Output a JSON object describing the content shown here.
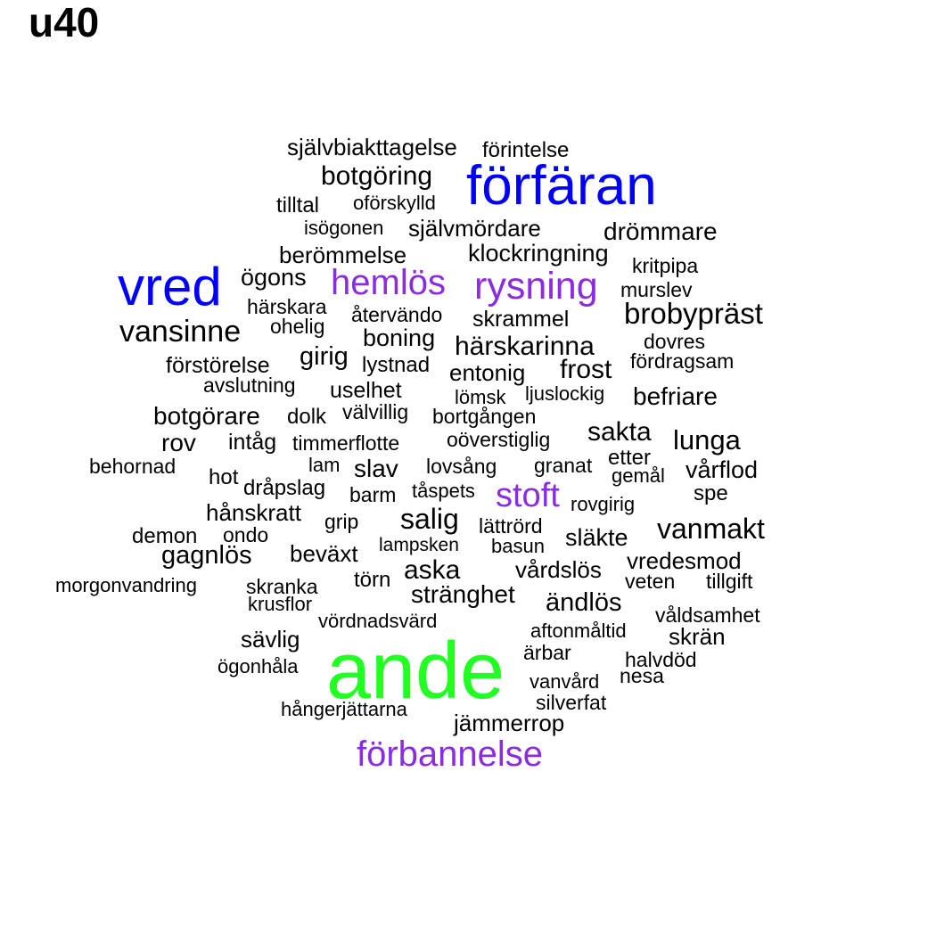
{
  "title": "u40",
  "colors": {
    "default": "#000000",
    "blue": "#0000ff",
    "purple": "#8b2be2",
    "green": "#22ff22"
  },
  "words": [
    {
      "text": "självbiakttagelse",
      "tier": "default"
    },
    {
      "text": "förintelse",
      "tier": "default"
    },
    {
      "text": "botgöring",
      "tier": "default"
    },
    {
      "text": "förfäran",
      "tier": "blue"
    },
    {
      "text": "tilltal",
      "tier": "default"
    },
    {
      "text": "oförskylld",
      "tier": "default"
    },
    {
      "text": "isögonen",
      "tier": "default"
    },
    {
      "text": "självmördare",
      "tier": "default"
    },
    {
      "text": "drömmare",
      "tier": "default"
    },
    {
      "text": "berömmelse",
      "tier": "default"
    },
    {
      "text": "klockringning",
      "tier": "default"
    },
    {
      "text": "kritpipa",
      "tier": "default"
    },
    {
      "text": "vred",
      "tier": "blue"
    },
    {
      "text": "ögons",
      "tier": "default"
    },
    {
      "text": "hemlös",
      "tier": "purple"
    },
    {
      "text": "rysning",
      "tier": "purple"
    },
    {
      "text": "murslev",
      "tier": "default"
    },
    {
      "text": "härskara",
      "tier": "default"
    },
    {
      "text": "återvändo",
      "tier": "default"
    },
    {
      "text": "skrammel",
      "tier": "default"
    },
    {
      "text": "brobypräst",
      "tier": "default"
    },
    {
      "text": "vansinne",
      "tier": "default"
    },
    {
      "text": "ohelig",
      "tier": "default"
    },
    {
      "text": "boning",
      "tier": "default"
    },
    {
      "text": "härskarinna",
      "tier": "default"
    },
    {
      "text": "dovres",
      "tier": "default"
    },
    {
      "text": "förstörelse",
      "tier": "default"
    },
    {
      "text": "girig",
      "tier": "default"
    },
    {
      "text": "lystnad",
      "tier": "default"
    },
    {
      "text": "entonig",
      "tier": "default"
    },
    {
      "text": "frost",
      "tier": "default"
    },
    {
      "text": "fördragsam",
      "tier": "default"
    },
    {
      "text": "avslutning",
      "tier": "default"
    },
    {
      "text": "uselhet",
      "tier": "default"
    },
    {
      "text": "lömsk",
      "tier": "default"
    },
    {
      "text": "ljuslockig",
      "tier": "default"
    },
    {
      "text": "befriare",
      "tier": "default"
    },
    {
      "text": "botgörare",
      "tier": "default"
    },
    {
      "text": "dolk",
      "tier": "default"
    },
    {
      "text": "välvillig",
      "tier": "default"
    },
    {
      "text": "bortgången",
      "tier": "default"
    },
    {
      "text": "sakta",
      "tier": "default"
    },
    {
      "text": "rov",
      "tier": "default"
    },
    {
      "text": "intåg",
      "tier": "default"
    },
    {
      "text": "timmerflotte",
      "tier": "default"
    },
    {
      "text": "oöverstiglig",
      "tier": "default"
    },
    {
      "text": "lunga",
      "tier": "default"
    },
    {
      "text": "behornad",
      "tier": "default"
    },
    {
      "text": "lam",
      "tier": "default"
    },
    {
      "text": "slav",
      "tier": "default"
    },
    {
      "text": "lovsång",
      "tier": "default"
    },
    {
      "text": "granat",
      "tier": "default"
    },
    {
      "text": "etter",
      "tier": "default"
    },
    {
      "text": "vårflod",
      "tier": "default"
    },
    {
      "text": "hot",
      "tier": "default"
    },
    {
      "text": "gemål",
      "tier": "default"
    },
    {
      "text": "dråpslag",
      "tier": "default"
    },
    {
      "text": "tåspets",
      "tier": "default"
    },
    {
      "text": "stoft",
      "tier": "purple"
    },
    {
      "text": "spe",
      "tier": "default"
    },
    {
      "text": "barm",
      "tier": "default"
    },
    {
      "text": "hånskratt",
      "tier": "default"
    },
    {
      "text": "salig",
      "tier": "default"
    },
    {
      "text": "rovgirig",
      "tier": "default"
    },
    {
      "text": "grip",
      "tier": "default"
    },
    {
      "text": "lättrörd",
      "tier": "default"
    },
    {
      "text": "vanmakt",
      "tier": "default"
    },
    {
      "text": "demon",
      "tier": "default"
    },
    {
      "text": "ondo",
      "tier": "default"
    },
    {
      "text": "släkte",
      "tier": "default"
    },
    {
      "text": "lampsken",
      "tier": "default"
    },
    {
      "text": "basun",
      "tier": "default"
    },
    {
      "text": "gagnlös",
      "tier": "default"
    },
    {
      "text": "beväxt",
      "tier": "default"
    },
    {
      "text": "vredesmod",
      "tier": "default"
    },
    {
      "text": "aska",
      "tier": "default"
    },
    {
      "text": "vårdslös",
      "tier": "default"
    },
    {
      "text": "morgonvandring",
      "tier": "default"
    },
    {
      "text": "skranka",
      "tier": "default"
    },
    {
      "text": "törn",
      "tier": "default"
    },
    {
      "text": "veten",
      "tier": "default"
    },
    {
      "text": "tillgift",
      "tier": "default"
    },
    {
      "text": "stränghet",
      "tier": "default"
    },
    {
      "text": "krusflor",
      "tier": "default"
    },
    {
      "text": "ändlös",
      "tier": "default"
    },
    {
      "text": "vördnadsvärd",
      "tier": "default"
    },
    {
      "text": "våldsamhet",
      "tier": "default"
    },
    {
      "text": "sävlig",
      "tier": "default"
    },
    {
      "text": "aftonmåltid",
      "tier": "default"
    },
    {
      "text": "skrän",
      "tier": "default"
    },
    {
      "text": "ande",
      "tier": "green"
    },
    {
      "text": "ärbar",
      "tier": "default"
    },
    {
      "text": "halvdöd",
      "tier": "default"
    },
    {
      "text": "ögonhåla",
      "tier": "default"
    },
    {
      "text": "nesa",
      "tier": "default"
    },
    {
      "text": "vanvård",
      "tier": "default"
    },
    {
      "text": "silverfat",
      "tier": "default"
    },
    {
      "text": "hångerjättarna",
      "tier": "default"
    },
    {
      "text": "jämmerrop",
      "tier": "default"
    },
    {
      "text": "förbannelse",
      "tier": "purple"
    }
  ]
}
